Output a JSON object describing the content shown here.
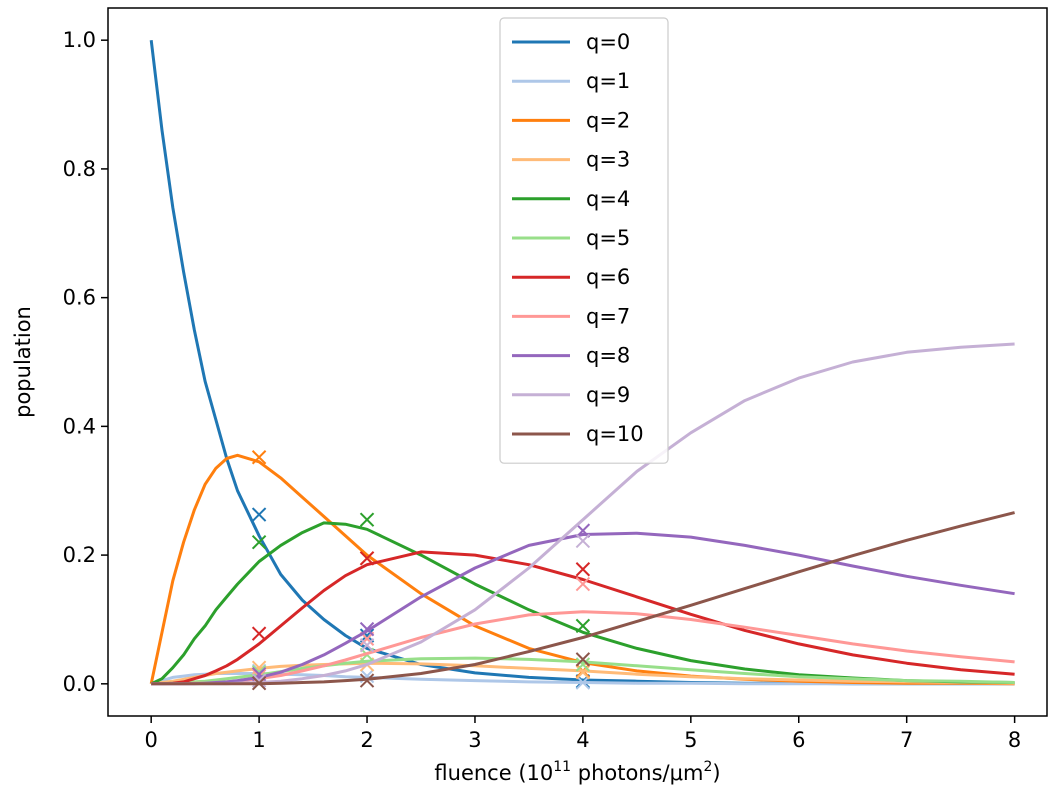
{
  "chart_data": {
    "type": "line",
    "xlabel_main": "fluence (10",
    "xlabel_sup": "11",
    "xlabel_rest": " photons/μm",
    "xlabel_sup2": "2",
    "xlabel_end": ")",
    "ylabel": "population",
    "xlim": [
      -0.4,
      8.3
    ],
    "ylim": [
      -0.05,
      1.05
    ],
    "x_ticks": [
      0,
      1,
      2,
      3,
      4,
      5,
      6,
      7,
      8
    ],
    "x_tick_labels": [
      "0",
      "1",
      "2",
      "3",
      "4",
      "5",
      "6",
      "7",
      "8"
    ],
    "y_ticks": [
      0.0,
      0.2,
      0.4,
      0.6,
      0.8,
      1.0
    ],
    "y_tick_labels": [
      "0.0",
      "0.2",
      "0.4",
      "0.6",
      "0.8",
      "1.0"
    ],
    "legend_position": "top-center",
    "grid": false,
    "x": [
      0,
      0.1,
      0.2,
      0.3,
      0.4,
      0.5,
      0.6,
      0.7,
      0.8,
      1,
      1.2,
      1.4,
      1.6,
      1.8,
      2,
      2.5,
      3,
      3.5,
      4,
      4.5,
      5,
      5.5,
      6,
      6.5,
      7,
      7.5,
      8
    ],
    "series": [
      {
        "name": "q=0",
        "color": "#1f77b4",
        "values": [
          1.0,
          0.86,
          0.74,
          0.64,
          0.55,
          0.47,
          0.41,
          0.35,
          0.3,
          0.23,
          0.17,
          0.13,
          0.1,
          0.075,
          0.055,
          0.03,
          0.017,
          0.01,
          0.006,
          0.004,
          0.002,
          0.001,
          0.001,
          0.0,
          0.0,
          0.0,
          0.0
        ],
        "markers": [
          {
            "x": 1,
            "y": 0.263
          },
          {
            "x": 2,
            "y": 0.075
          },
          {
            "x": 4,
            "y": 0.004
          }
        ]
      },
      {
        "name": "q=1",
        "color": "#aec7e8",
        "values": [
          0.0,
          0.005,
          0.01,
          0.012,
          0.014,
          0.015,
          0.016,
          0.016,
          0.016,
          0.016,
          0.015,
          0.014,
          0.013,
          0.011,
          0.01,
          0.007,
          0.005,
          0.003,
          0.002,
          0.001,
          0.001,
          0.0,
          0.0,
          0.0,
          0.0,
          0.0,
          0.0
        ],
        "markers": [
          {
            "x": 1,
            "y": 0.02
          },
          {
            "x": 2,
            "y": 0.012
          },
          {
            "x": 4,
            "y": 0.002
          }
        ]
      },
      {
        "name": "q=2",
        "color": "#ff7f0e",
        "values": [
          0.0,
          0.08,
          0.16,
          0.22,
          0.27,
          0.31,
          0.335,
          0.35,
          0.355,
          0.345,
          0.32,
          0.29,
          0.26,
          0.23,
          0.2,
          0.14,
          0.09,
          0.055,
          0.033,
          0.02,
          0.012,
          0.007,
          0.004,
          0.002,
          0.001,
          0.001,
          0.0
        ],
        "markers": [
          {
            "x": 1,
            "y": 0.352
          },
          {
            "x": 2,
            "y": 0.195
          },
          {
            "x": 4,
            "y": 0.02
          }
        ]
      },
      {
        "name": "q=3",
        "color": "#ffbb78",
        "values": [
          0.0,
          0.002,
          0.004,
          0.007,
          0.01,
          0.013,
          0.016,
          0.018,
          0.02,
          0.024,
          0.027,
          0.029,
          0.03,
          0.031,
          0.032,
          0.031,
          0.028,
          0.024,
          0.02,
          0.015,
          0.011,
          0.008,
          0.006,
          0.004,
          0.003,
          0.002,
          0.001
        ],
        "markers": [
          {
            "x": 1,
            "y": 0.025
          },
          {
            "x": 2,
            "y": 0.03
          },
          {
            "x": 4,
            "y": 0.018
          }
        ]
      },
      {
        "name": "q=4",
        "color": "#2ca02c",
        "values": [
          0.0,
          0.008,
          0.025,
          0.045,
          0.07,
          0.09,
          0.115,
          0.135,
          0.155,
          0.19,
          0.215,
          0.235,
          0.25,
          0.248,
          0.24,
          0.2,
          0.155,
          0.115,
          0.08,
          0.055,
          0.036,
          0.023,
          0.014,
          0.009,
          0.005,
          0.003,
          0.002
        ],
        "markers": [
          {
            "x": 1,
            "y": 0.22
          },
          {
            "x": 2,
            "y": 0.255
          },
          {
            "x": 4,
            "y": 0.09
          }
        ]
      },
      {
        "name": "q=5",
        "color": "#98df8a",
        "values": [
          0.0,
          0.0,
          0.001,
          0.002,
          0.003,
          0.004,
          0.006,
          0.008,
          0.01,
          0.014,
          0.019,
          0.024,
          0.028,
          0.032,
          0.035,
          0.039,
          0.04,
          0.038,
          0.034,
          0.028,
          0.022,
          0.016,
          0.011,
          0.008,
          0.005,
          0.004,
          0.002
        ],
        "markers": [
          {
            "x": 1,
            "y": 0.018
          },
          {
            "x": 2,
            "y": 0.045
          },
          {
            "x": 4,
            "y": 0.03
          }
        ]
      },
      {
        "name": "q=6",
        "color": "#d62728",
        "values": [
          0.0,
          0.0,
          0.001,
          0.003,
          0.008,
          0.013,
          0.02,
          0.028,
          0.038,
          0.062,
          0.09,
          0.118,
          0.145,
          0.168,
          0.185,
          0.205,
          0.2,
          0.185,
          0.162,
          0.135,
          0.108,
          0.083,
          0.062,
          0.045,
          0.032,
          0.022,
          0.015
        ],
        "markers": [
          {
            "x": 1,
            "y": 0.078
          },
          {
            "x": 2,
            "y": 0.195
          },
          {
            "x": 4,
            "y": 0.178
          }
        ]
      },
      {
        "name": "q=7",
        "color": "#ff9896",
        "values": [
          0.0,
          0.0,
          0.0,
          0.0,
          0.001,
          0.001,
          0.002,
          0.003,
          0.004,
          0.008,
          0.013,
          0.02,
          0.028,
          0.037,
          0.047,
          0.072,
          0.093,
          0.107,
          0.112,
          0.109,
          0.1,
          0.088,
          0.075,
          0.062,
          0.051,
          0.042,
          0.034
        ],
        "markers": [
          {
            "x": 1,
            "y": 0.012
          },
          {
            "x": 2,
            "y": 0.07
          },
          {
            "x": 4,
            "y": 0.155
          }
        ]
      },
      {
        "name": "q=8",
        "color": "#9467bd",
        "values": [
          0.0,
          0.0,
          0.0,
          0.0,
          0.0,
          0.001,
          0.002,
          0.003,
          0.005,
          0.01,
          0.018,
          0.03,
          0.045,
          0.063,
          0.082,
          0.135,
          0.18,
          0.215,
          0.232,
          0.234,
          0.228,
          0.215,
          0.2,
          0.183,
          0.167,
          0.153,
          0.14
        ],
        "markers": [
          {
            "x": 1,
            "y": 0.015
          },
          {
            "x": 2,
            "y": 0.085
          },
          {
            "x": 4,
            "y": 0.238
          }
        ]
      },
      {
        "name": "q=9",
        "color": "#c5b0d5",
        "values": [
          0.0,
          0.0,
          0.0,
          0.0,
          0.0,
          0.0,
          0.0,
          0.0,
          0.001,
          0.002,
          0.004,
          0.008,
          0.013,
          0.02,
          0.03,
          0.065,
          0.115,
          0.18,
          0.255,
          0.33,
          0.39,
          0.44,
          0.475,
          0.5,
          0.515,
          0.523,
          0.528
        ],
        "markers": [
          {
            "x": 1,
            "y": 0.005
          },
          {
            "x": 2,
            "y": 0.06
          },
          {
            "x": 4,
            "y": 0.222
          }
        ]
      },
      {
        "name": "q=10",
        "color": "#8c564b",
        "values": [
          0.0,
          0.0,
          0.0,
          0.0,
          0.0,
          0.0,
          0.0,
          0.0,
          0.0,
          0.0,
          0.001,
          0.002,
          0.003,
          0.005,
          0.007,
          0.016,
          0.03,
          0.05,
          0.072,
          0.097,
          0.122,
          0.148,
          0.174,
          0.199,
          0.223,
          0.245,
          0.266
        ],
        "markers": [
          {
            "x": 1,
            "y": 0.001
          },
          {
            "x": 2,
            "y": 0.005
          },
          {
            "x": 4,
            "y": 0.038
          }
        ]
      }
    ]
  }
}
